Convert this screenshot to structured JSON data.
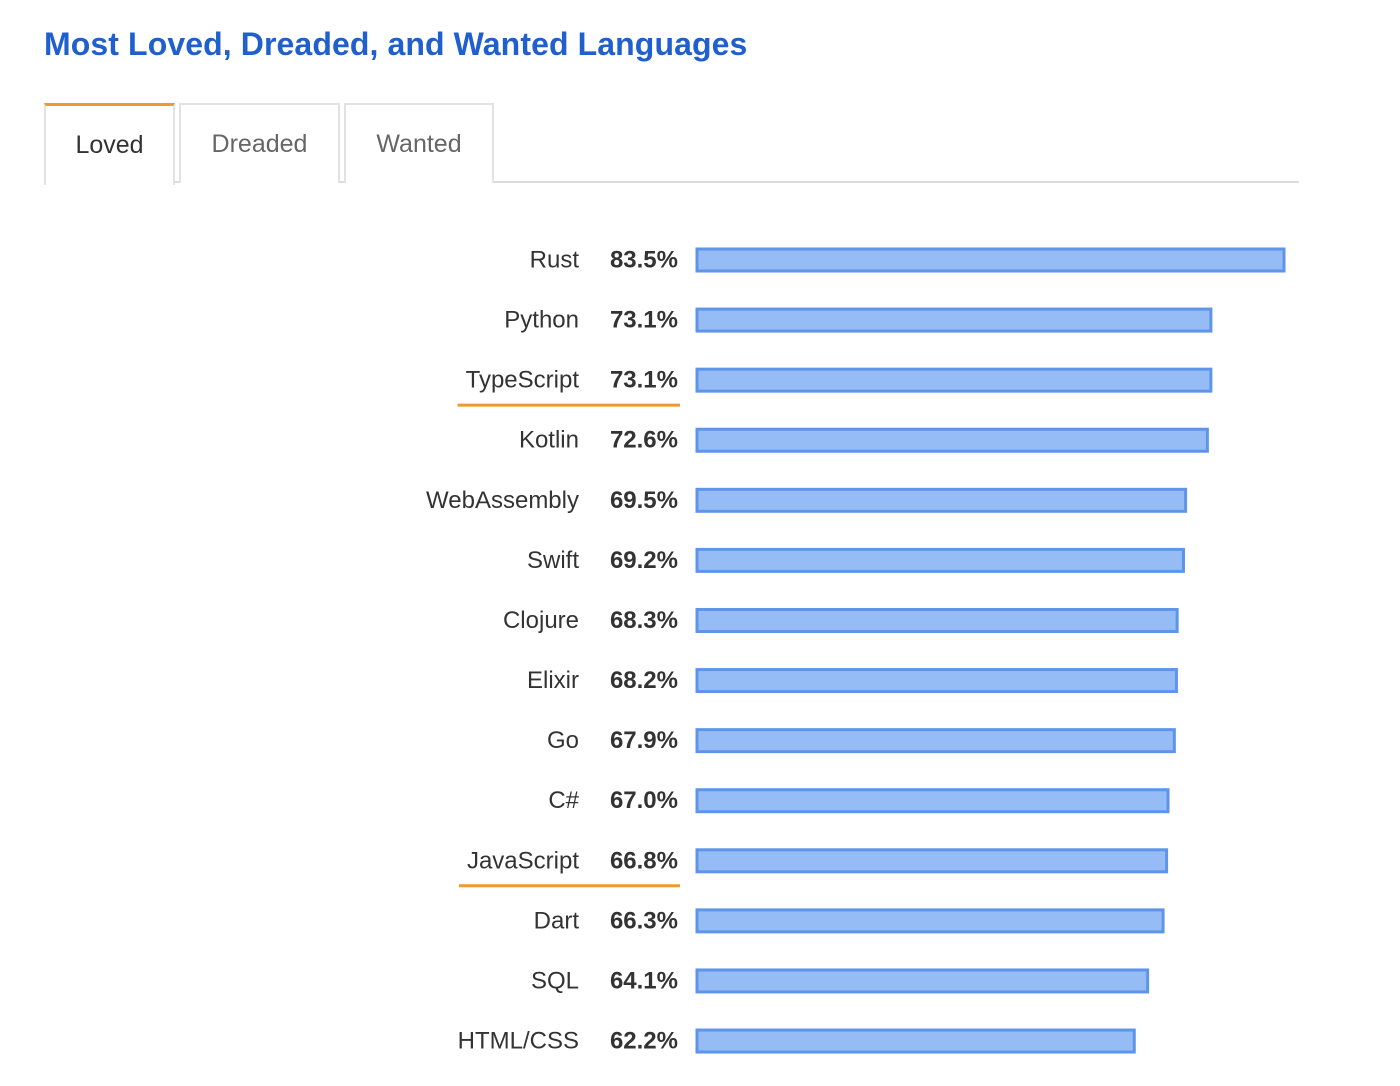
{
  "header": {
    "title": "Most Loved, Dreaded, and Wanted Languages"
  },
  "tabs": [
    {
      "label": "Loved",
      "active": true
    },
    {
      "label": "Dreaded",
      "active": false
    },
    {
      "label": "Wanted",
      "active": false
    }
  ],
  "colors": {
    "title": "#1f5fce",
    "accent": "#f0982f",
    "bar_fill": "#95bcf5",
    "bar_stroke": "#5e95ea"
  },
  "chart_data": {
    "type": "bar",
    "orientation": "horizontal",
    "categories": [
      "Rust",
      "Python",
      "TypeScript",
      "Kotlin",
      "WebAssembly",
      "Swift",
      "Clojure",
      "Elixir",
      "Go",
      "C#",
      "JavaScript",
      "Dart",
      "SQL",
      "HTML/CSS"
    ],
    "values": [
      83.5,
      73.1,
      73.1,
      72.6,
      69.5,
      69.2,
      68.3,
      68.2,
      67.9,
      67.0,
      66.8,
      66.3,
      64.1,
      62.2
    ],
    "value_labels": [
      "83.5%",
      "73.1%",
      "73.1%",
      "72.6%",
      "69.5%",
      "69.2%",
      "68.3%",
      "68.2%",
      "67.9%",
      "67.0%",
      "66.8%",
      "66.3%",
      "64.1%",
      "62.2%"
    ],
    "highlighted": [
      "TypeScript",
      "JavaScript"
    ],
    "unit": "%",
    "xlim": [
      0,
      83.5
    ],
    "grid": false,
    "legend": "none"
  }
}
